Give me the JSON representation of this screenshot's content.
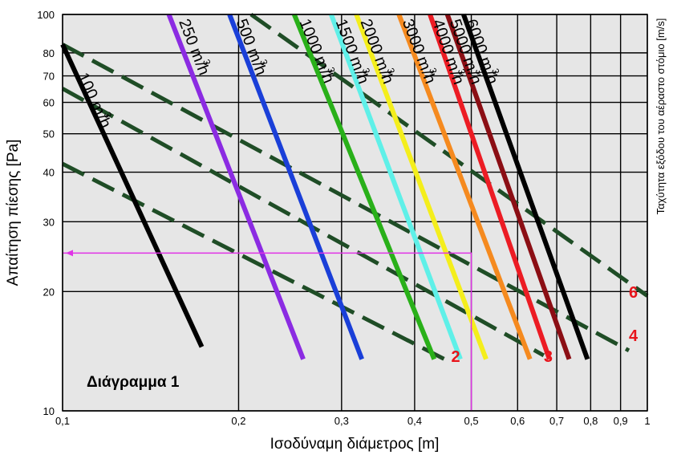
{
  "chart_data": {
    "type": "line",
    "title": "Διάγραμμα 1",
    "xlabel": "Ισοδύναμη διάμετρος [m]",
    "ylabel": "Απαίτηση πίεσης [Pa]",
    "ylabel_right": "Ταχύτητα εξόδου του αέραστο στόμιο [m/s]",
    "x_scale": "log",
    "y_scale": "log",
    "xlim": [
      0.1,
      1.0
    ],
    "ylim": [
      10,
      100
    ],
    "grid": true,
    "x_ticks": [
      {
        "value": 0.1,
        "label": "0,1"
      },
      {
        "value": 0.2,
        "label": "0,2"
      },
      {
        "value": 0.3,
        "label": "0,3"
      },
      {
        "value": 0.4,
        "label": "0,4"
      },
      {
        "value": 0.5,
        "label": "0,5"
      },
      {
        "value": 0.6,
        "label": "0,6"
      },
      {
        "value": 0.7,
        "label": "0,7"
      },
      {
        "value": 0.8,
        "label": "0,8"
      },
      {
        "value": 0.9,
        "label": "0,9"
      },
      {
        "value": 1.0,
        "label": "1"
      }
    ],
    "y_ticks": [
      {
        "value": 10,
        "label": "10"
      },
      {
        "value": 20,
        "label": "20"
      },
      {
        "value": 30,
        "label": "30"
      },
      {
        "value": 40,
        "label": "40"
      },
      {
        "value": 50,
        "label": "50"
      },
      {
        "value": 60,
        "label": "60"
      },
      {
        "value": 70,
        "label": "70"
      },
      {
        "value": 80,
        "label": "80"
      },
      {
        "value": 100,
        "label": "100"
      }
    ],
    "flow_series": [
      {
        "name": "100 m3/h",
        "label": "100 m",
        "sup": "3",
        "unit": "/h",
        "color": "#000000",
        "points": [
          [
            0.1,
            84
          ],
          [
            0.173,
            14.5
          ]
        ],
        "label_at": [
          0.106,
          70
        ]
      },
      {
        "name": "250 m3/h",
        "label": "250 m",
        "sup": "3",
        "unit": "/h",
        "color": "#8b2be2",
        "points": [
          [
            0.152,
            100
          ],
          [
            0.258,
            13.5
          ]
        ],
        "label_at": [
          0.158,
          96
        ]
      },
      {
        "name": "500 m3/h",
        "label": "500 m",
        "sup": "3",
        "unit": "/h",
        "color": "#1a3fd8",
        "points": [
          [
            0.193,
            100
          ],
          [
            0.325,
            13.5
          ]
        ],
        "label_at": [
          0.198,
          96
        ]
      },
      {
        "name": "1000 m3/h",
        "label": "1000 m",
        "sup": "3",
        "unit": "/h",
        "color": "#29b019",
        "points": [
          [
            0.249,
            100
          ],
          [
            0.432,
            13.5
          ]
        ],
        "label_at": [
          0.254,
          96
        ]
      },
      {
        "name": "1500 m3/h",
        "label": "1500 m",
        "sup": "3",
        "unit": "/h",
        "color": "#5ff0e8",
        "points": [
          [
            0.288,
            100
          ],
          [
            0.479,
            13.5
          ]
        ],
        "label_at": [
          0.293,
          96
        ]
      },
      {
        "name": "2000 m3/h",
        "label": "2000 m",
        "sup": "3",
        "unit": "/h",
        "color": "#f4ee1c",
        "points": [
          [
            0.318,
            100
          ],
          [
            0.53,
            13.5
          ]
        ],
        "label_at": [
          0.323,
          96
        ]
      },
      {
        "name": "3000 m3/h",
        "label": "3000 m",
        "sup": "3",
        "unit": "/h",
        "color": "#f58a1f",
        "points": [
          [
            0.376,
            100
          ],
          [
            0.63,
            13.5
          ]
        ],
        "label_at": [
          0.381,
          96
        ]
      },
      {
        "name": "4000 m3/h",
        "label": "4000 m",
        "sup": "3",
        "unit": "/h",
        "color": "#ec1c24",
        "points": [
          [
            0.425,
            100
          ],
          [
            0.68,
            13.5
          ]
        ],
        "label_at": [
          0.429,
          96
        ]
      },
      {
        "name": "5000 m3/h",
        "label": "5000 m",
        "sup": "3",
        "unit": "/h",
        "color": "#8b0e14",
        "points": [
          [
            0.455,
            100
          ],
          [
            0.735,
            13.5
          ]
        ],
        "label_at": [
          0.459,
          96
        ]
      },
      {
        "name": "6000 m3/h",
        "label": "6000 m",
        "sup": "3",
        "unit": "/h",
        "color": "#000000",
        "points": [
          [
            0.485,
            100
          ],
          [
            0.79,
            13.5
          ]
        ],
        "label_at": [
          0.489,
          96
        ]
      }
    ],
    "velocity_series": [
      {
        "name": "2",
        "label": "2",
        "color": "#1f4d26",
        "points": [
          [
            0.1,
            42
          ],
          [
            0.45,
            13.5
          ]
        ],
        "label_at": [
          0.462,
          13.3
        ]
      },
      {
        "name": "3",
        "label": "3",
        "color": "#1f4d26",
        "points": [
          [
            0.1,
            65
          ],
          [
            0.665,
            13.8
          ]
        ],
        "label_at": [
          0.665,
          13.3
        ]
      },
      {
        "name": "4",
        "label": "4",
        "color": "#1f4d26",
        "points": [
          [
            0.1,
            84
          ],
          [
            0.93,
            14.2
          ]
        ],
        "label_at": [
          0.93,
          15.0
        ]
      },
      {
        "name": "6",
        "label": "6",
        "color": "#1f4d26",
        "points": [
          [
            0.21,
            100
          ],
          [
            1.0,
            19.5
          ]
        ],
        "label_at": [
          0.93,
          19.3
        ]
      }
    ],
    "example_path": {
      "color": "#e033e6",
      "points": [
        [
          0.5,
          10
        ],
        [
          0.5,
          25
        ],
        [
          0.1,
          25
        ]
      ]
    }
  }
}
